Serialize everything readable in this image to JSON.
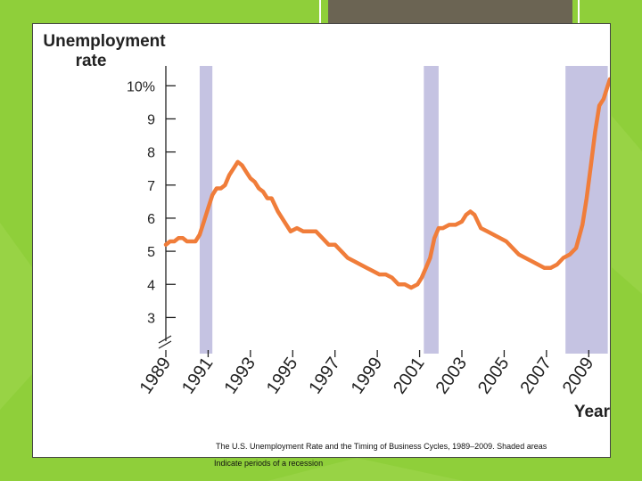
{
  "colors": {
    "background": "#8fcf3a",
    "line": "#f07d3a",
    "recession": "#c5c3e2",
    "axis": "#222222",
    "label": "#222222",
    "header_block": "#6b6453"
  },
  "caption": {
    "line1": "The U.S. Unemployment Rate and the Timing of Business Cycles, 1989–2009.  Shaded areas",
    "line2": "Indicate periods of a recession"
  },
  "chart_data": {
    "type": "line",
    "title": "",
    "ylabel_line1": "Unemployment",
    "ylabel_line2": "rate",
    "xlabel": "Year",
    "xlim": [
      1989,
      2010
    ],
    "ylim": [
      2.5,
      10.6
    ],
    "y_ticks": [
      3,
      4,
      5,
      6,
      7,
      8,
      9,
      10
    ],
    "y_tick_labels": [
      "3",
      "4",
      "5",
      "6",
      "7",
      "8",
      "9",
      "10%"
    ],
    "x_ticks": [
      1989,
      1991,
      1993,
      1995,
      1997,
      1999,
      2001,
      2003,
      2005,
      2007,
      2009
    ],
    "x_tick_labels": [
      "1989",
      "1991",
      "1993",
      "1995",
      "1997",
      "1999",
      "2001",
      "2003",
      "2005",
      "2007",
      "2009"
    ],
    "recessions": [
      [
        1990.6,
        1991.2
      ],
      [
        2001.2,
        2001.9
      ],
      [
        2007.9,
        2009.9
      ]
    ],
    "series": [
      {
        "name": "Unemployment rate",
        "x": [
          1989.0,
          1989.2,
          1989.4,
          1989.6,
          1989.8,
          1990.0,
          1990.2,
          1990.4,
          1990.6,
          1990.8,
          1991.0,
          1991.2,
          1991.4,
          1991.6,
          1991.8,
          1992.0,
          1992.2,
          1992.4,
          1992.6,
          1992.8,
          1993.0,
          1993.2,
          1993.4,
          1993.6,
          1993.8,
          1994.0,
          1994.3,
          1994.6,
          1994.9,
          1995.2,
          1995.5,
          1995.8,
          1996.1,
          1996.4,
          1996.7,
          1997.0,
          1997.3,
          1997.6,
          1997.9,
          1998.2,
          1998.5,
          1998.8,
          1999.1,
          1999.4,
          1999.7,
          2000.0,
          2000.3,
          2000.6,
          2000.9,
          2001.1,
          2001.3,
          2001.5,
          2001.7,
          2001.9,
          2002.1,
          2002.4,
          2002.7,
          2003.0,
          2003.2,
          2003.4,
          2003.6,
          2003.9,
          2004.2,
          2004.5,
          2004.8,
          2005.1,
          2005.4,
          2005.7,
          2006.0,
          2006.3,
          2006.6,
          2006.9,
          2007.2,
          2007.5,
          2007.8,
          2008.1,
          2008.4,
          2008.7,
          2008.9,
          2009.1,
          2009.3,
          2009.5,
          2009.7,
          2009.9,
          2010.0
        ],
        "values": [
          5.2,
          5.3,
          5.3,
          5.4,
          5.4,
          5.3,
          5.3,
          5.3,
          5.5,
          5.9,
          6.3,
          6.7,
          6.9,
          6.9,
          7.0,
          7.3,
          7.5,
          7.7,
          7.6,
          7.4,
          7.2,
          7.1,
          6.9,
          6.8,
          6.6,
          6.6,
          6.2,
          5.9,
          5.6,
          5.7,
          5.6,
          5.6,
          5.6,
          5.4,
          5.2,
          5.2,
          5.0,
          4.8,
          4.7,
          4.6,
          4.5,
          4.4,
          4.3,
          4.3,
          4.2,
          4.0,
          4.0,
          3.9,
          4.0,
          4.2,
          4.5,
          4.8,
          5.4,
          5.7,
          5.7,
          5.8,
          5.8,
          5.9,
          6.1,
          6.2,
          6.1,
          5.7,
          5.6,
          5.5,
          5.4,
          5.3,
          5.1,
          4.9,
          4.8,
          4.7,
          4.6,
          4.5,
          4.5,
          4.6,
          4.8,
          4.9,
          5.1,
          5.8,
          6.6,
          7.6,
          8.6,
          9.4,
          9.6,
          10.0,
          10.2
        ]
      }
    ]
  }
}
